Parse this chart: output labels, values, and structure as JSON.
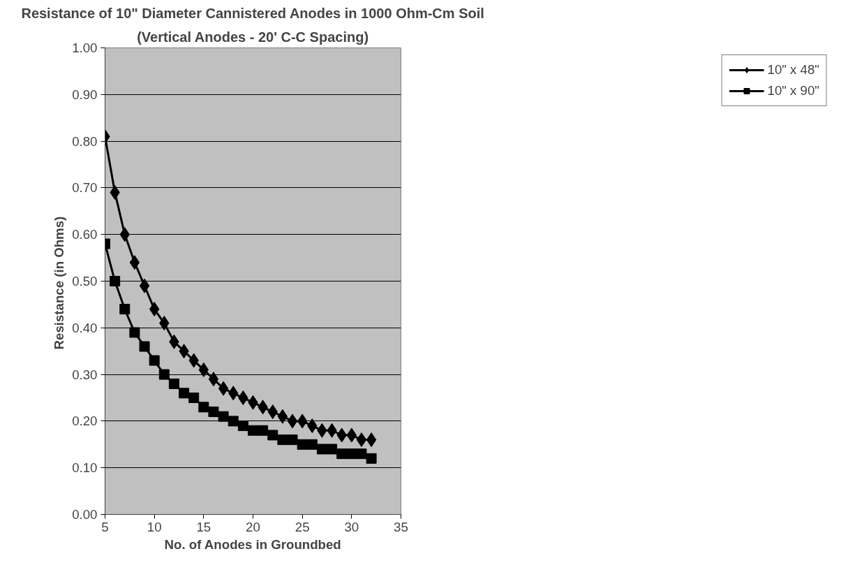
{
  "chart_data": {
    "type": "line",
    "title": "Resistance of 10\" Diameter Cannistered Anodes in 1000 Ohm-Cm Soil",
    "subtitle": "(Vertical Anodes - 20' C-C Spacing)",
    "xlabel": "No. of Anodes in Groundbed",
    "ylabel": "Resistance  (in Ohms)",
    "x": [
      5,
      6,
      7,
      8,
      9,
      10,
      11,
      12,
      13,
      14,
      15,
      16,
      17,
      18,
      19,
      20,
      21,
      22,
      23,
      24,
      25,
      26,
      27,
      28,
      29,
      30,
      31,
      32
    ],
    "series": [
      {
        "name": "10\" x 48\"",
        "color": "#000000",
        "marker": "diamond",
        "values": [
          0.81,
          0.69,
          0.6,
          0.54,
          0.49,
          0.44,
          0.41,
          0.37,
          0.35,
          0.33,
          0.31,
          0.29,
          0.27,
          0.26,
          0.25,
          0.24,
          0.23,
          0.22,
          0.21,
          0.2,
          0.2,
          0.19,
          0.18,
          0.18,
          0.17,
          0.17,
          0.16,
          0.16
        ]
      },
      {
        "name": "10\" x 90\"",
        "color": "#000000",
        "marker": "square",
        "values": [
          0.58,
          0.5,
          0.44,
          0.39,
          0.36,
          0.33,
          0.3,
          0.28,
          0.26,
          0.25,
          0.23,
          0.22,
          0.21,
          0.2,
          0.19,
          0.18,
          0.18,
          0.17,
          0.16,
          0.16,
          0.15,
          0.15,
          0.14,
          0.14,
          0.13,
          0.13,
          0.13,
          0.12
        ]
      }
    ],
    "xlim": [
      5,
      35
    ],
    "xticks": [
      5,
      10,
      15,
      20,
      25,
      30,
      35
    ],
    "ylim": [
      0,
      1
    ],
    "yticks": [
      {
        "value": 0,
        "label": "0.00"
      },
      {
        "value": 0.1,
        "label": "0.10"
      },
      {
        "value": 0.2,
        "label": "0.20"
      },
      {
        "value": 0.3,
        "label": "0.30"
      },
      {
        "value": 0.4,
        "label": "0.40"
      },
      {
        "value": 0.5,
        "label": "0.50"
      },
      {
        "value": 0.6,
        "label": "0.60"
      },
      {
        "value": 0.7,
        "label": "0.70"
      },
      {
        "value": 0.8,
        "label": "0.80"
      },
      {
        "value": 0.9,
        "label": "0.90"
      },
      {
        "value": 1,
        "label": "1.00"
      }
    ],
    "grid": "y",
    "legend": "right",
    "line_style": "solid"
  }
}
